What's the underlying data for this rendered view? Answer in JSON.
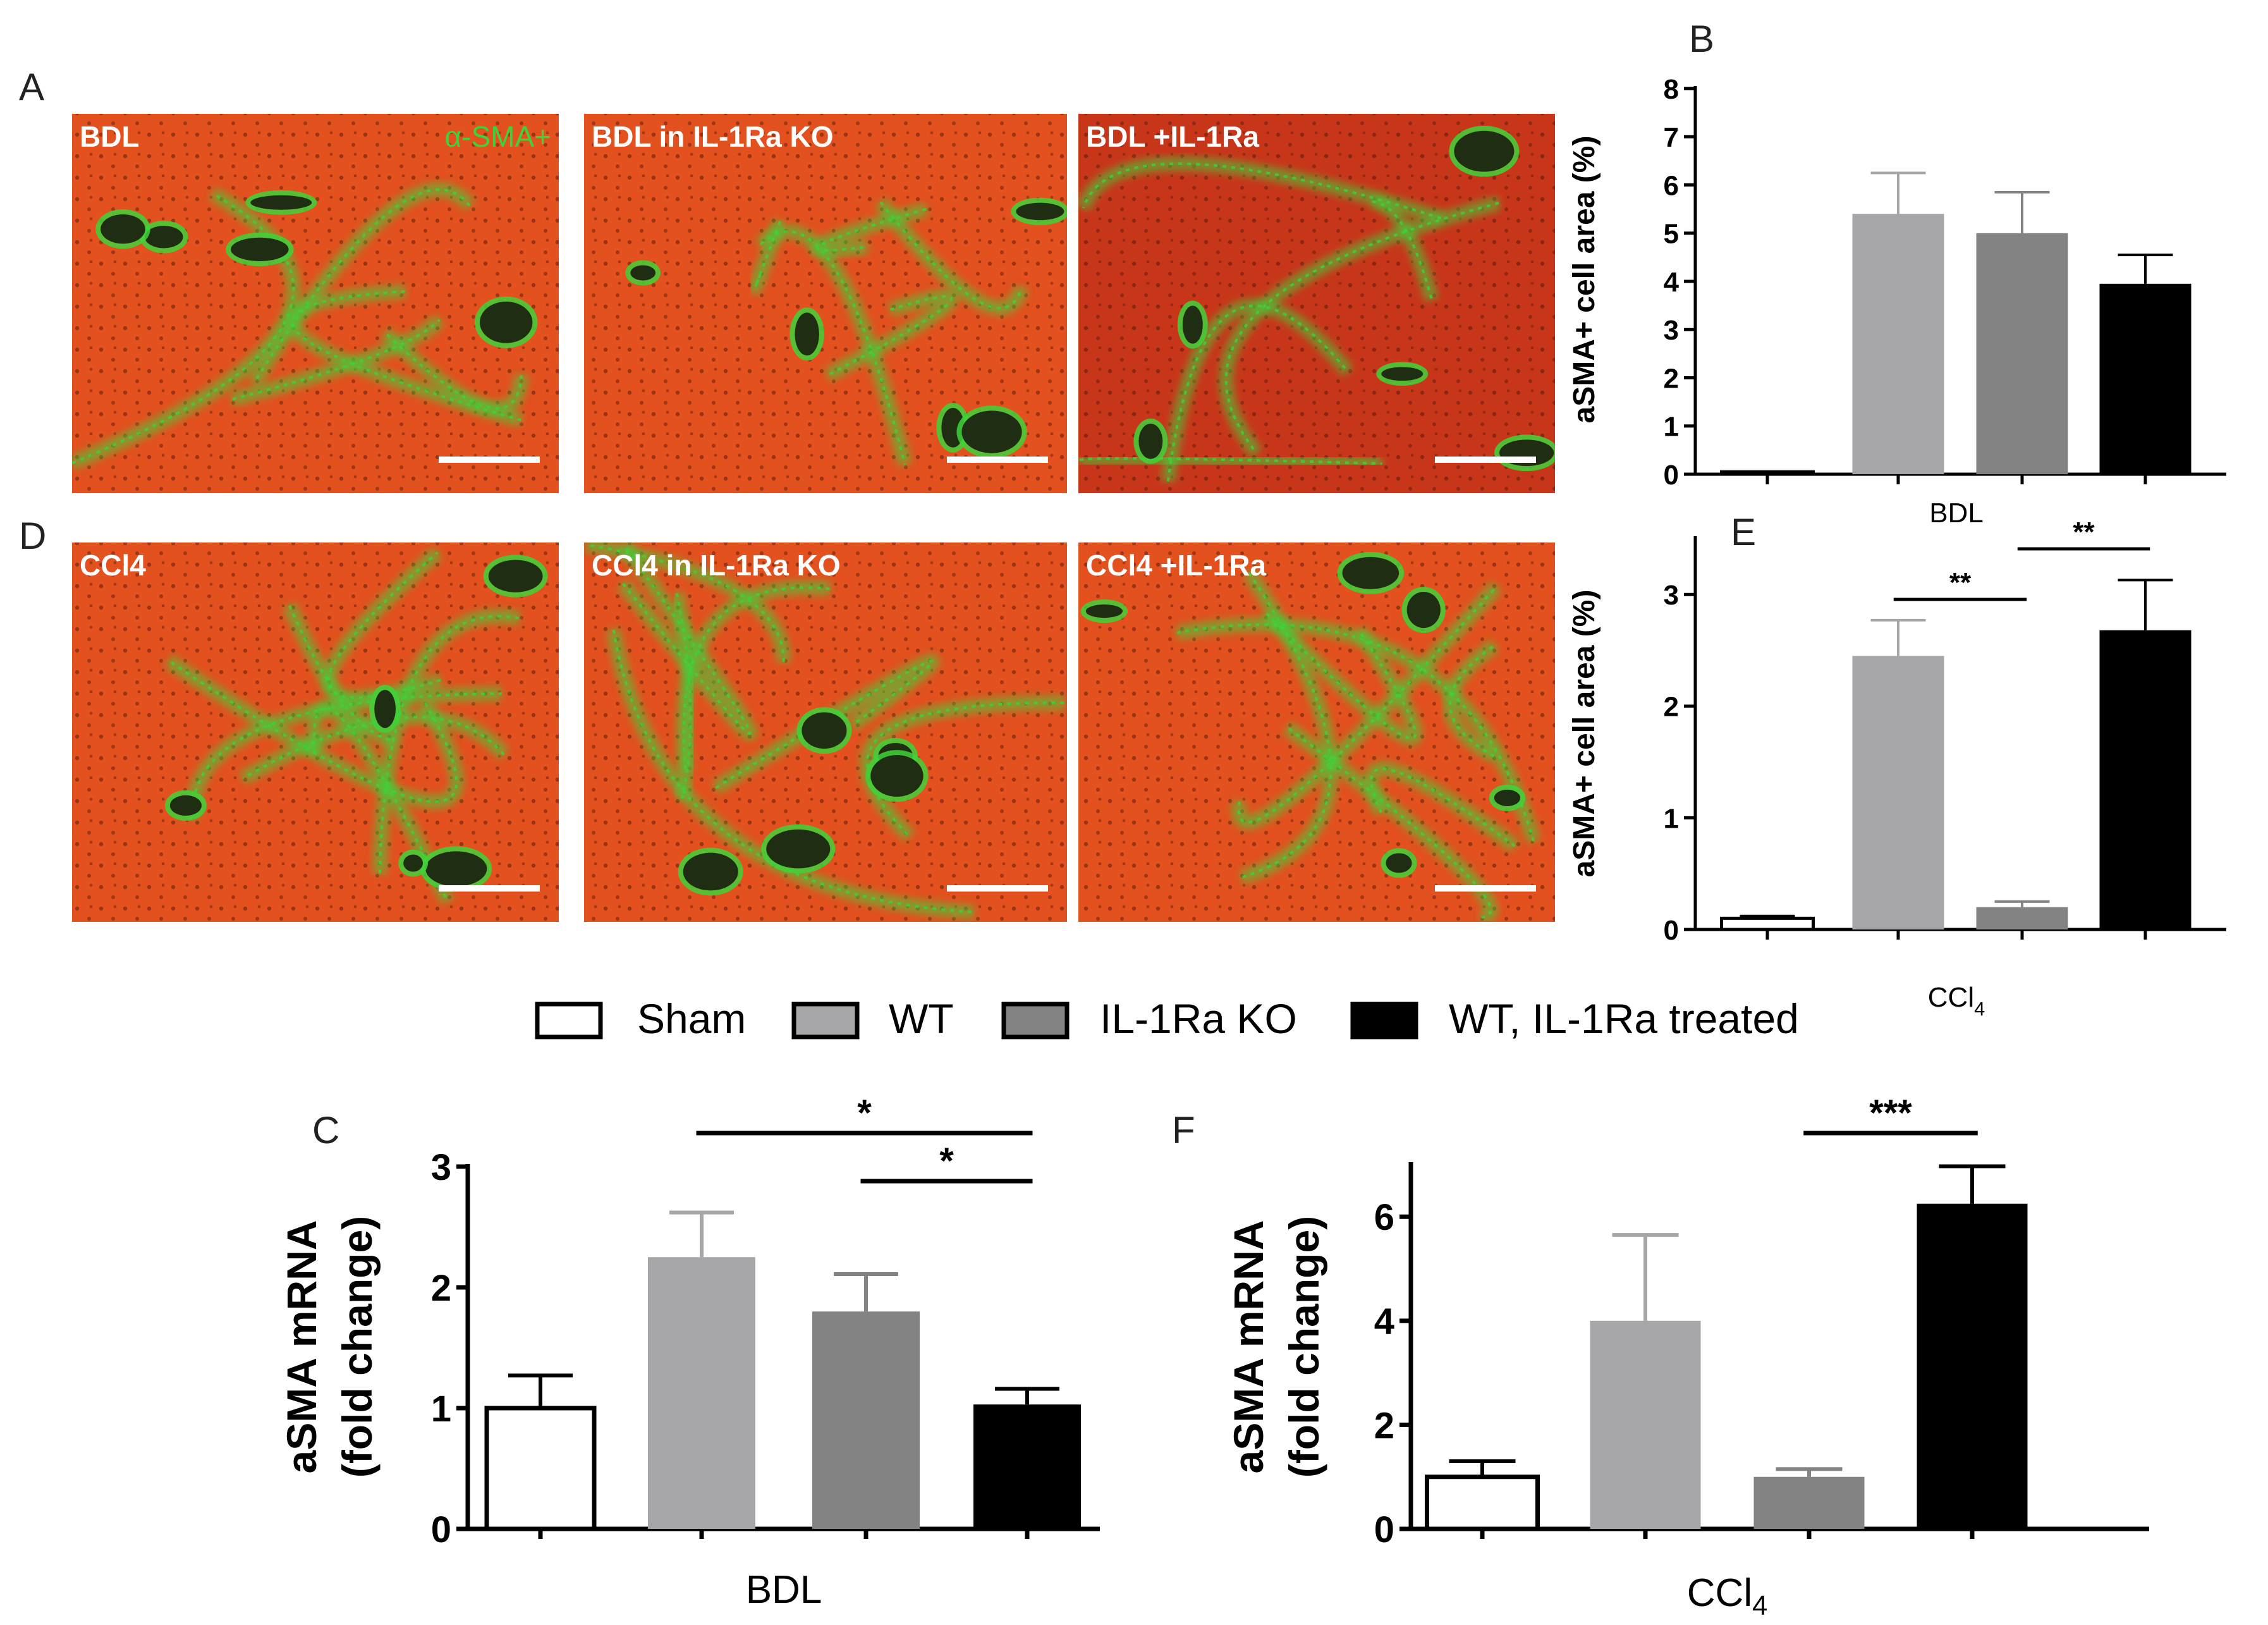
{
  "panel_letters": {
    "A": "A",
    "B": "B",
    "C": "C",
    "D": "D",
    "E": "E",
    "F": "F"
  },
  "micrographs": {
    "row_A": [
      {
        "label": "BDL",
        "marker_label": "α-SMA+"
      },
      {
        "label": "BDL in IL-1Ra KO"
      },
      {
        "label": "BDL +IL-1Ra"
      }
    ],
    "row_D": [
      {
        "label": "CCl4"
      },
      {
        "label": "CCl4 in IL-1Ra KO"
      },
      {
        "label": "CCl4 +IL-1Ra"
      }
    ],
    "colors": {
      "tissue": "#e2511e",
      "tissue_dark": "#c8361a",
      "stain": "#3fd23a",
      "vessel": "#1f2e12",
      "scale_bar": "#ffffff"
    }
  },
  "legend": {
    "items": [
      {
        "label": "Sham",
        "color": "#ffffff"
      },
      {
        "label": "WT",
        "color": "#a6a6a8"
      },
      {
        "label": "IL-1Ra KO",
        "color": "#838383"
      },
      {
        "label": "WT, IL-1Ra treated",
        "color": "#000000"
      }
    ]
  },
  "chart_data": [
    {
      "id": "B",
      "type": "bar",
      "categories": [
        "Sham",
        "WT",
        "IL-1Ra KO",
        "WT, IL-1Ra treated"
      ],
      "values": [
        0.05,
        5.4,
        5.0,
        3.95
      ],
      "errors": [
        0.0,
        0.85,
        0.85,
        0.6
      ],
      "ylabel": "aSMA+ cell area (%)",
      "xlabel": "BDL",
      "xlabel_sub": "",
      "ylim": [
        0,
        8
      ],
      "yticks": [
        "0",
        "1",
        "2",
        "3",
        "4",
        "5",
        "6",
        "7",
        "8"
      ],
      "significance": []
    },
    {
      "id": "E",
      "type": "bar",
      "categories": [
        "Sham",
        "WT",
        "IL-1Ra KO",
        "WT, IL-1Ra treated"
      ],
      "values": [
        0.1,
        2.45,
        0.2,
        2.68
      ],
      "errors": [
        0.02,
        0.32,
        0.05,
        0.45
      ],
      "ylabel": "aSMA+ cell area (%)",
      "xlabel": "CCl",
      "xlabel_sub": "4",
      "ylim": [
        0,
        3.5
      ],
      "yticks": [
        "0",
        "1",
        "2",
        "3"
      ],
      "significance": [
        {
          "from": 1,
          "to": 2,
          "label": "**"
        },
        {
          "from": 2,
          "to": 3,
          "label": "**"
        }
      ]
    },
    {
      "id": "C",
      "type": "bar",
      "categories": [
        "Sham",
        "WT",
        "IL-1Ra KO",
        "WT, IL-1Ra treated"
      ],
      "values": [
        1.0,
        2.25,
        1.8,
        1.03
      ],
      "errors": [
        0.27,
        0.37,
        0.31,
        0.13
      ],
      "ylabel": "aSMA mRNA (fold change)",
      "ylabel_lines": [
        "aSMA mRNA",
        "(fold change)"
      ],
      "xlabel": "BDL",
      "xlabel_sub": "",
      "ylim": [
        0,
        3
      ],
      "yticks": [
        "0",
        "1",
        "2",
        "3"
      ],
      "significance": [
        {
          "from": 1,
          "to": 3,
          "label": "*"
        },
        {
          "from": 2,
          "to": 3,
          "label": "*"
        }
      ]
    },
    {
      "id": "F",
      "type": "bar",
      "categories": [
        "Sham",
        "WT",
        "IL-1Ra KO",
        "WT, IL-1Ra treated"
      ],
      "values": [
        1.0,
        4.0,
        1.0,
        6.25
      ],
      "errors": [
        0.3,
        1.65,
        0.15,
        0.72
      ],
      "ylabel": "aSMA mRNA (fold change)",
      "ylabel_lines": [
        "aSMA mRNA",
        "(fold change)"
      ],
      "xlabel": "CCl",
      "xlabel_sub": "4",
      "ylim": [
        0,
        7
      ],
      "yticks": [
        "0",
        "2",
        "4",
        "6"
      ],
      "ytick_values": [
        0,
        2,
        4,
        6
      ],
      "significance": [
        {
          "from": 2,
          "to": 3,
          "label": "***"
        }
      ]
    }
  ]
}
